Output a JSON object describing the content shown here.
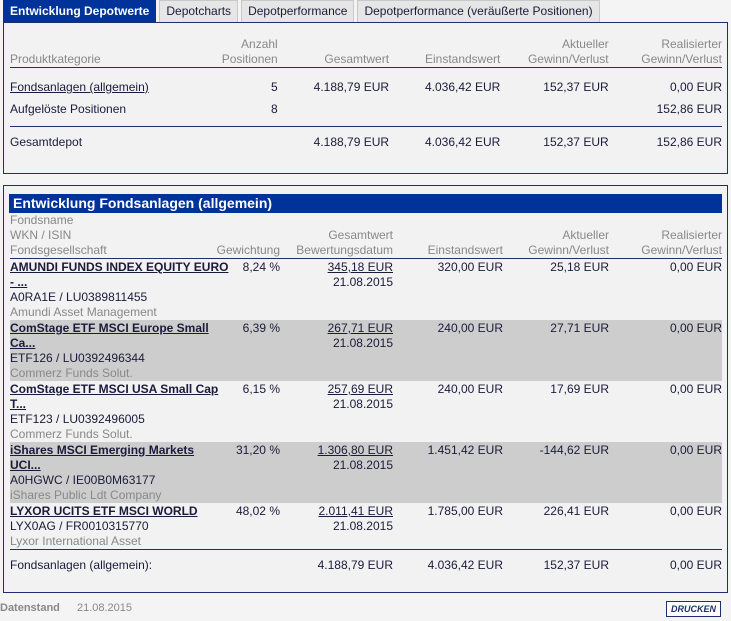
{
  "tabs": [
    "Entwicklung Depotwerte",
    "Depotcharts",
    "Depotperformance",
    "Depotperformance (veräußerte Positionen)"
  ],
  "overview": {
    "headers": {
      "kategorie": "Produktkategorie",
      "anzahl1": "Anzahl",
      "anzahl2": "Positionen",
      "gesamtwert": "Gesamtwert",
      "einstandswert": "Einstandswert",
      "aktuell1": "Aktueller",
      "aktuell2": "Gewinn/Verlust",
      "real1": "Realisierter",
      "real2": "Gewinn/Verlust"
    },
    "rows": [
      {
        "kategorie": "Fondsanlagen (allgemein)",
        "anzahl": "5",
        "gesamtwert": "4.188,79 EUR",
        "einstandswert": "4.036,42 EUR",
        "aktuell": "152,37 EUR",
        "real": "0,00 EUR"
      },
      {
        "kategorie": "Aufgelöste Positionen",
        "anzahl": "8",
        "gesamtwert": "",
        "einstandswert": "",
        "aktuell": "",
        "real": "152,86 EUR"
      }
    ],
    "total": {
      "label": "Gesamtdepot",
      "gesamtwert": "4.188,79 EUR",
      "einstandswert": "4.036,42 EUR",
      "aktuell": "152,37 EUR",
      "real": "152,86 EUR"
    }
  },
  "funds": {
    "title": "Entwicklung Fondsanlagen (allgemein)",
    "headers": {
      "name": "Fondsname",
      "wkn": "WKN / ISIN",
      "gesellschaft": "Fondsgesellschaft",
      "gewichtung": "Gewichtung",
      "gesamtwert": "Gesamtwert",
      "datum": "Bewertungsdatum",
      "einstandswert": "Einstandswert",
      "aktuell1": "Aktueller",
      "aktuell2": "Gewinn/Verlust",
      "real1": "Realisierter",
      "real2": "Gewinn/Verlust"
    },
    "rows": [
      {
        "name1": "AMUNDI FUNDS INDEX EQUITY EURO",
        "name2": "- ...",
        "wkn": "A0RA1E / LU0389811455",
        "gesellschaft": "Amundi Asset Management",
        "gewichtung": "8,24 %",
        "gesamtwert": "345,18 EUR",
        "datum": "21.08.2015",
        "einstandswert": "320,00 EUR",
        "aktuell": "25,18 EUR",
        "real": "0,00 EUR"
      },
      {
        "name1": "ComStage ETF MSCI Europe Small",
        "name2": "Ca...",
        "wkn": "ETF126 / LU0392496344",
        "gesellschaft": "Commerz Funds Solut.",
        "gewichtung": "6,39 %",
        "gesamtwert": "267,71 EUR",
        "datum": "21.08.2015",
        "einstandswert": "240,00 EUR",
        "aktuell": "27,71 EUR",
        "real": "0,00 EUR"
      },
      {
        "name1": "ComStage ETF MSCI USA Small Cap",
        "name2": "T...",
        "wkn": "ETF123 / LU0392496005",
        "gesellschaft": "Commerz Funds Solut.",
        "gewichtung": "6,15 %",
        "gesamtwert": "257,69 EUR",
        "datum": "21.08.2015",
        "einstandswert": "240,00 EUR",
        "aktuell": "17,69 EUR",
        "real": "0,00 EUR"
      },
      {
        "name1": "iShares MSCI Emerging Markets",
        "name2": "UCI...",
        "wkn": "A0HGWC / IE00B0M63177",
        "gesellschaft": "iShares Public Ldt Company",
        "gewichtung": "31,20 %",
        "gesamtwert": "1.306,80 EUR",
        "datum": "21.08.2015",
        "einstandswert": "1.451,42 EUR",
        "aktuell": "-144,62 EUR",
        "real": "0,00 EUR"
      },
      {
        "name1": "LYXOR UCITS ETF MSCI WORLD",
        "name2": "",
        "wkn": "LYX0AG / FR0010315770",
        "gesellschaft": "Lyxor International Asset",
        "gewichtung": "48,02 %",
        "gesamtwert": "2.011,41 EUR",
        "datum": "21.08.2015",
        "einstandswert": "1.785,00 EUR",
        "aktuell": "226,41 EUR",
        "real": "0,00 EUR"
      }
    ],
    "total": {
      "label": "Fondsanlagen (allgemein):",
      "gesamtwert": "4.188,79 EUR",
      "einstandswert": "4.036,42 EUR",
      "aktuell": "152,37 EUR",
      "real": "0,00 EUR"
    }
  },
  "footer": {
    "label": "Datenstand",
    "date": "21.08.2015",
    "print": "DRUCKEN"
  }
}
